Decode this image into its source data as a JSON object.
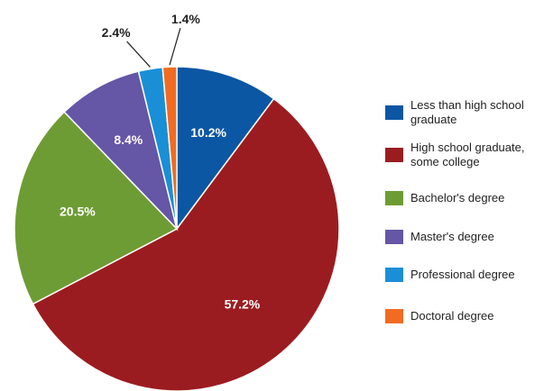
{
  "chart_data": {
    "type": "pie",
    "categories": [
      "Less than high school graduate",
      "High school graduate, some college",
      "Bachelor's degree",
      "Master's degree",
      "Professional degree",
      "Doctoral degree"
    ],
    "values": [
      10.2,
      57.2,
      20.5,
      8.4,
      2.4,
      1.4
    ],
    "value_labels": [
      "10.2%",
      "57.2%",
      "20.5%",
      "8.4%",
      "2.4%",
      "1.4%"
    ],
    "colors": [
      "#0b57a4",
      "#9b1c20",
      "#6e9c34",
      "#6556a6",
      "#1a8fd6",
      "#f26b22"
    ]
  }
}
